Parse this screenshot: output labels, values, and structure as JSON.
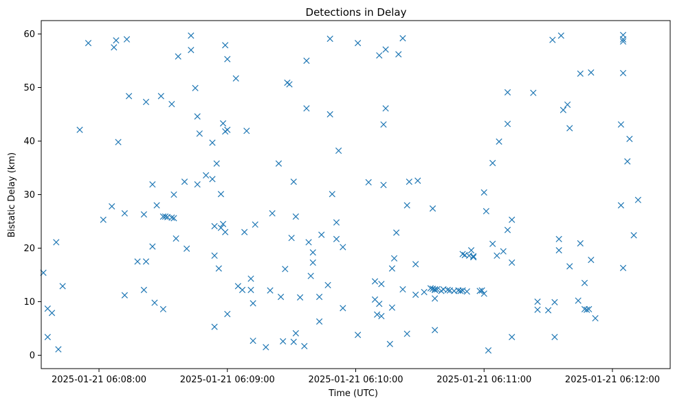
{
  "chart_data": {
    "type": "scatter",
    "title": "Detections in Delay",
    "xlabel": "Time (UTC)",
    "ylabel": "Bistatic Delay (km)",
    "x_ticks": [
      "2025-01-21 06:08:00",
      "2025-01-21 06:09:00",
      "2025-01-21 06:10:00",
      "2025-01-21 06:11:00",
      "2025-01-21 06:12:00"
    ],
    "y_ticks": [
      "0",
      "10",
      "20",
      "30",
      "40",
      "50",
      "60"
    ],
    "xlim": [
      "2025-01-21 06:07:33",
      "2025-01-21 06:12:27"
    ],
    "ylim": [
      -2.5,
      62.5
    ],
    "grid": false,
    "marker": "x",
    "color": "#1f77b4",
    "series": [
      {
        "points": [
          [
            "2025-01-21 06:07:34",
            15.4
          ],
          [
            "2025-01-21 06:07:36",
            8.7
          ],
          [
            "2025-01-21 06:07:36",
            3.4
          ],
          [
            "2025-01-21 06:07:38",
            7.9
          ],
          [
            "2025-01-21 06:07:40",
            21.1
          ],
          [
            "2025-01-21 06:07:41",
            1.1
          ],
          [
            "2025-01-21 06:07:43",
            12.9
          ],
          [
            "2025-01-21 06:07:51",
            42.1
          ],
          [
            "2025-01-21 06:07:55",
            58.3
          ],
          [
            "2025-01-21 06:08:02",
            25.3
          ],
          [
            "2025-01-21 06:08:06",
            27.8
          ],
          [
            "2025-01-21 06:08:07",
            57.5
          ],
          [
            "2025-01-21 06:08:08",
            58.8
          ],
          [
            "2025-01-21 06:08:09",
            39.8
          ],
          [
            "2025-01-21 06:08:12",
            26.5
          ],
          [
            "2025-01-21 06:08:12",
            11.2
          ],
          [
            "2025-01-21 06:08:13",
            59.0
          ],
          [
            "2025-01-21 06:08:14",
            48.4
          ],
          [
            "2025-01-21 06:08:18",
            17.5
          ],
          [
            "2025-01-21 06:08:21",
            26.3
          ],
          [
            "2025-01-21 06:08:21",
            12.2
          ],
          [
            "2025-01-21 06:08:22",
            47.3
          ],
          [
            "2025-01-21 06:08:22",
            17.5
          ],
          [
            "2025-01-21 06:08:25",
            20.3
          ],
          [
            "2025-01-21 06:08:25",
            31.9
          ],
          [
            "2025-01-21 06:08:26",
            9.8
          ],
          [
            "2025-01-21 06:08:27",
            28.0
          ],
          [
            "2025-01-21 06:08:29",
            48.4
          ],
          [
            "2025-01-21 06:08:30",
            25.9
          ],
          [
            "2025-01-21 06:08:30",
            8.6
          ],
          [
            "2025-01-21 06:08:31",
            25.9
          ],
          [
            "2025-01-21 06:08:32",
            25.8
          ],
          [
            "2025-01-21 06:08:34",
            25.7
          ],
          [
            "2025-01-21 06:08:34",
            46.9
          ],
          [
            "2025-01-21 06:08:35",
            25.6
          ],
          [
            "2025-01-21 06:08:35",
            30.0
          ],
          [
            "2025-01-21 06:08:36",
            21.8
          ],
          [
            "2025-01-21 06:08:37",
            55.8
          ],
          [
            "2025-01-21 06:08:40",
            32.4
          ],
          [
            "2025-01-21 06:08:41",
            19.9
          ],
          [
            "2025-01-21 06:08:43",
            59.7
          ],
          [
            "2025-01-21 06:08:43",
            57.0
          ],
          [
            "2025-01-21 06:08:45",
            49.9
          ],
          [
            "2025-01-21 06:08:46",
            31.9
          ],
          [
            "2025-01-21 06:08:46",
            44.6
          ],
          [
            "2025-01-21 06:08:47",
            41.4
          ],
          [
            "2025-01-21 06:08:50",
            33.6
          ],
          [
            "2025-01-21 06:08:53",
            32.9
          ],
          [
            "2025-01-21 06:08:53",
            39.7
          ],
          [
            "2025-01-21 06:08:54",
            24.1
          ],
          [
            "2025-01-21 06:08:54",
            18.6
          ],
          [
            "2025-01-21 06:08:54",
            5.3
          ],
          [
            "2025-01-21 06:08:55",
            35.8
          ],
          [
            "2025-01-21 06:08:56",
            16.2
          ],
          [
            "2025-01-21 06:08:57",
            30.1
          ],
          [
            "2025-01-21 06:08:57",
            23.8
          ],
          [
            "2025-01-21 06:08:58",
            24.5
          ],
          [
            "2025-01-21 06:08:58",
            43.3
          ],
          [
            "2025-01-21 06:08:59",
            57.9
          ],
          [
            "2025-01-21 06:08:59",
            41.8
          ],
          [
            "2025-01-21 06:08:59",
            23.0
          ],
          [
            "2025-01-21 06:09:00",
            55.3
          ],
          [
            "2025-01-21 06:09:00",
            42.1
          ],
          [
            "2025-01-21 06:09:00",
            7.7
          ],
          [
            "2025-01-21 06:09:04",
            51.7
          ],
          [
            "2025-01-21 06:09:05",
            12.9
          ],
          [
            "2025-01-21 06:09:07",
            12.2
          ],
          [
            "2025-01-21 06:09:08",
            23.0
          ],
          [
            "2025-01-21 06:09:09",
            41.9
          ],
          [
            "2025-01-21 06:09:11",
            14.3
          ],
          [
            "2025-01-21 06:09:11",
            12.2
          ],
          [
            "2025-01-21 06:09:12",
            9.7
          ],
          [
            "2025-01-21 06:09:12",
            2.7
          ],
          [
            "2025-01-21 06:09:13",
            24.4
          ],
          [
            "2025-01-21 06:09:18",
            1.5
          ],
          [
            "2025-01-21 06:09:20",
            12.1
          ],
          [
            "2025-01-21 06:09:21",
            26.5
          ],
          [
            "2025-01-21 06:09:24",
            35.8
          ],
          [
            "2025-01-21 06:09:25",
            10.9
          ],
          [
            "2025-01-21 06:09:26",
            2.6
          ],
          [
            "2025-01-21 06:09:27",
            16.1
          ],
          [
            "2025-01-21 06:09:28",
            50.9
          ],
          [
            "2025-01-21 06:09:29",
            50.6
          ],
          [
            "2025-01-21 06:09:30",
            21.9
          ],
          [
            "2025-01-21 06:09:31",
            2.5
          ],
          [
            "2025-01-21 06:09:31",
            32.4
          ],
          [
            "2025-01-21 06:09:32",
            25.9
          ],
          [
            "2025-01-21 06:09:32",
            4.1
          ],
          [
            "2025-01-21 06:09:34",
            10.8
          ],
          [
            "2025-01-21 06:09:36",
            1.7
          ],
          [
            "2025-01-21 06:09:37",
            55.0
          ],
          [
            "2025-01-21 06:09:37",
            46.1
          ],
          [
            "2025-01-21 06:09:38",
            21.1
          ],
          [
            "2025-01-21 06:09:39",
            14.8
          ],
          [
            "2025-01-21 06:09:40",
            19.2
          ],
          [
            "2025-01-21 06:09:40",
            17.3
          ],
          [
            "2025-01-21 06:09:43",
            10.9
          ],
          [
            "2025-01-21 06:09:43",
            6.3
          ],
          [
            "2025-01-21 06:09:44",
            22.5
          ],
          [
            "2025-01-21 06:09:47",
            13.1
          ],
          [
            "2025-01-21 06:09:48",
            59.1
          ],
          [
            "2025-01-21 06:09:48",
            45.0
          ],
          [
            "2025-01-21 06:09:49",
            30.1
          ],
          [
            "2025-01-21 06:09:51",
            21.7
          ],
          [
            "2025-01-21 06:09:51",
            24.8
          ],
          [
            "2025-01-21 06:09:52",
            38.2
          ],
          [
            "2025-01-21 06:09:54",
            20.2
          ],
          [
            "2025-01-21 06:09:54",
            8.8
          ],
          [
            "2025-01-21 06:10:01",
            58.3
          ],
          [
            "2025-01-21 06:10:01",
            3.8
          ],
          [
            "2025-01-21 06:10:06",
            32.3
          ],
          [
            "2025-01-21 06:10:09",
            13.8
          ],
          [
            "2025-01-21 06:10:09",
            10.4
          ],
          [
            "2025-01-21 06:10:10",
            7.6
          ],
          [
            "2025-01-21 06:10:11",
            56.0
          ],
          [
            "2025-01-21 06:10:11",
            9.6
          ],
          [
            "2025-01-21 06:10:12",
            13.3
          ],
          [
            "2025-01-21 06:10:12",
            7.3
          ],
          [
            "2025-01-21 06:10:13",
            43.1
          ],
          [
            "2025-01-21 06:10:13",
            31.8
          ],
          [
            "2025-01-21 06:10:14",
            57.1
          ],
          [
            "2025-01-21 06:10:14",
            46.1
          ],
          [
            "2025-01-21 06:10:16",
            2.1
          ],
          [
            "2025-01-21 06:10:17",
            16.2
          ],
          [
            "2025-01-21 06:10:17",
            8.9
          ],
          [
            "2025-01-21 06:10:18",
            18.1
          ],
          [
            "2025-01-21 06:10:19",
            22.9
          ],
          [
            "2025-01-21 06:10:20",
            56.2
          ],
          [
            "2025-01-21 06:10:22",
            59.2
          ],
          [
            "2025-01-21 06:10:22",
            12.3
          ],
          [
            "2025-01-21 06:10:24",
            28.0
          ],
          [
            "2025-01-21 06:10:24",
            4.0
          ],
          [
            "2025-01-21 06:10:25",
            32.4
          ],
          [
            "2025-01-21 06:10:28",
            17.0
          ],
          [
            "2025-01-21 06:10:28",
            11.3
          ],
          [
            "2025-01-21 06:10:29",
            32.6
          ],
          [
            "2025-01-21 06:10:32",
            11.8
          ],
          [
            "2025-01-21 06:10:35",
            12.5
          ],
          [
            "2025-01-21 06:10:36",
            12.4
          ],
          [
            "2025-01-21 06:10:36",
            27.4
          ],
          [
            "2025-01-21 06:10:37",
            12.3
          ],
          [
            "2025-01-21 06:10:37",
            12.2
          ],
          [
            "2025-01-21 06:10:37",
            10.6
          ],
          [
            "2025-01-21 06:10:37",
            4.7
          ],
          [
            "2025-01-21 06:10:38",
            12.3
          ],
          [
            "2025-01-21 06:10:40",
            12.0
          ],
          [
            "2025-01-21 06:10:41",
            12.3
          ],
          [
            "2025-01-21 06:10:43",
            12.2
          ],
          [
            "2025-01-21 06:10:44",
            12.1
          ],
          [
            "2025-01-21 06:10:46",
            12.0
          ],
          [
            "2025-01-21 06:10:48",
            12.1
          ],
          [
            "2025-01-21 06:10:49",
            12.0
          ],
          [
            "2025-01-21 06:10:50",
            18.9
          ],
          [
            "2025-01-21 06:10:50",
            12.1
          ],
          [
            "2025-01-21 06:10:51",
            18.7
          ],
          [
            "2025-01-21 06:10:52",
            11.9
          ],
          [
            "2025-01-21 06:10:53",
            18.6
          ],
          [
            "2025-01-21 06:10:54",
            19.6
          ],
          [
            "2025-01-21 06:10:55",
            18.5
          ],
          [
            "2025-01-21 06:10:55",
            18.3
          ],
          [
            "2025-01-21 06:10:58",
            12.0
          ],
          [
            "2025-01-21 06:10:59",
            12.1
          ],
          [
            "2025-01-21 06:11:00",
            30.4
          ],
          [
            "2025-01-21 06:11:00",
            11.5
          ],
          [
            "2025-01-21 06:11:01",
            26.9
          ],
          [
            "2025-01-21 06:11:02",
            0.9
          ],
          [
            "2025-01-21 06:11:04",
            20.8
          ],
          [
            "2025-01-21 06:11:04",
            35.9
          ],
          [
            "2025-01-21 06:11:06",
            18.6
          ],
          [
            "2025-01-21 06:11:07",
            39.9
          ],
          [
            "2025-01-21 06:11:09",
            19.4
          ],
          [
            "2025-01-21 06:11:11",
            43.2
          ],
          [
            "2025-01-21 06:11:11",
            49.1
          ],
          [
            "2025-01-21 06:11:11",
            23.4
          ],
          [
            "2025-01-21 06:11:13",
            25.3
          ],
          [
            "2025-01-21 06:11:13",
            17.3
          ],
          [
            "2025-01-21 06:11:13",
            3.4
          ],
          [
            "2025-01-21 06:11:23",
            49.0
          ],
          [
            "2025-01-21 06:11:25",
            8.5
          ],
          [
            "2025-01-21 06:11:25",
            10.0
          ],
          [
            "2025-01-21 06:11:30",
            8.4
          ],
          [
            "2025-01-21 06:11:32",
            58.9
          ],
          [
            "2025-01-21 06:11:33",
            9.9
          ],
          [
            "2025-01-21 06:11:33",
            3.4
          ],
          [
            "2025-01-21 06:11:35",
            21.7
          ],
          [
            "2025-01-21 06:11:35",
            19.6
          ],
          [
            "2025-01-21 06:11:36",
            59.7
          ],
          [
            "2025-01-21 06:11:37",
            45.8
          ],
          [
            "2025-01-21 06:11:39",
            46.8
          ],
          [
            "2025-01-21 06:11:40",
            42.4
          ],
          [
            "2025-01-21 06:11:40",
            16.6
          ],
          [
            "2025-01-21 06:11:44",
            10.2
          ],
          [
            "2025-01-21 06:11:45",
            52.6
          ],
          [
            "2025-01-21 06:11:45",
            20.9
          ],
          [
            "2025-01-21 06:11:47",
            13.5
          ],
          [
            "2025-01-21 06:11:47",
            8.6
          ],
          [
            "2025-01-21 06:11:48",
            8.5
          ],
          [
            "2025-01-21 06:11:49",
            8.6
          ],
          [
            "2025-01-21 06:11:50",
            52.8
          ],
          [
            "2025-01-21 06:11:50",
            17.8
          ],
          [
            "2025-01-21 06:11:52",
            6.9
          ],
          [
            "2025-01-21 06:12:04",
            28.0
          ],
          [
            "2025-01-21 06:12:04",
            43.1
          ],
          [
            "2025-01-21 06:12:05",
            59.8
          ],
          [
            "2025-01-21 06:12:05",
            59.0
          ],
          [
            "2025-01-21 06:12:05",
            58.6
          ],
          [
            "2025-01-21 06:12:05",
            52.7
          ],
          [
            "2025-01-21 06:12:05",
            16.3
          ],
          [
            "2025-01-21 06:12:07",
            36.2
          ],
          [
            "2025-01-21 06:12:08",
            40.4
          ],
          [
            "2025-01-21 06:12:10",
            22.4
          ],
          [
            "2025-01-21 06:12:12",
            29.0
          ]
        ]
      }
    ]
  }
}
